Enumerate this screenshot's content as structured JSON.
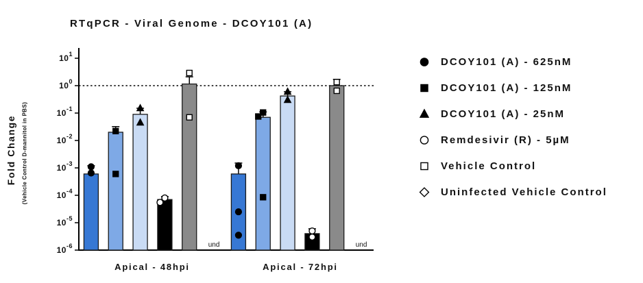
{
  "window": {
    "background": "#ffffff"
  },
  "chart_data": {
    "type": "bar",
    "title": "RTqPCR - Viral Genome - DCOY101 (A)",
    "ylabel": "Fold Change",
    "ylabel_sub": "(Vehicle Control D-mannitol in PBS)",
    "yscale": "log10",
    "ylim_exponents": [
      -6,
      1
    ],
    "y_ticks": [
      1,
      0,
      -1,
      -2,
      -3,
      -4,
      -5,
      -6
    ],
    "reference_line": 1.0,
    "grid": false,
    "legend_position": "right",
    "categories": [
      "Apical - 48hpi",
      "Apical - 72hpi"
    ],
    "bar_outline": "#1a1a1a",
    "series": [
      {
        "label": "DCOY101 (A) - 625nM",
        "marker": "circle-filled",
        "bar_color": "#3778d4",
        "bars": [
          {
            "value": 0.0006,
            "error_top": 0.0012,
            "points": [
              0.0011,
              0.00065
            ]
          },
          {
            "value": 0.0006,
            "error_top": 0.0015,
            "points": [
              0.0012,
              2.5e-05,
              3.5e-06
            ]
          }
        ]
      },
      {
        "label": "DCOY101 (A) - 125nM",
        "marker": "square-filled",
        "bar_color": "#7ea9e6",
        "bars": [
          {
            "value": 0.02,
            "error_top": 0.032,
            "points": [
              0.022,
              0.0006
            ]
          },
          {
            "value": 0.07,
            "error_top": 0.11,
            "points": [
              0.105,
              0.075,
              8.5e-05
            ]
          }
        ]
      },
      {
        "label": "DCOY101 (A) - 25nM",
        "marker": "triangle-filled",
        "bar_color": "#c9dbf4",
        "bars": [
          {
            "value": 0.09,
            "error_top": 0.15,
            "points": [
              0.15,
              0.045
            ]
          },
          {
            "value": 0.42,
            "error_top": 0.6,
            "points": [
              0.6,
              0.3
            ]
          }
        ]
      },
      {
        "label": "Remdesivir (R) - 5µM",
        "marker": "circle-open",
        "bar_color": "#000000",
        "bars": [
          {
            "value": 7e-05,
            "error_top": 9e-05,
            "points": [
              8e-05,
              5.5e-05
            ]
          },
          {
            "value": 4e-06,
            "error_top": 6e-06,
            "points": [
              5e-06,
              3e-06
            ]
          }
        ]
      },
      {
        "label": "Vehicle Control",
        "marker": "square-open",
        "bar_color": "#8a8a8a",
        "bars": [
          {
            "value": 1.15,
            "error_top": 2.1,
            "points": [
              2.9,
              0.07
            ]
          },
          {
            "value": 1.0,
            "error_top": 1.7,
            "points": [
              1.35,
              0.65
            ]
          }
        ]
      },
      {
        "label": "Uninfected Vehicle Control",
        "marker": "diamond-open",
        "bar_color": null,
        "bars": [
          {
            "undetermined": true,
            "label": "und"
          },
          {
            "undetermined": true,
            "label": "und"
          }
        ]
      }
    ]
  }
}
